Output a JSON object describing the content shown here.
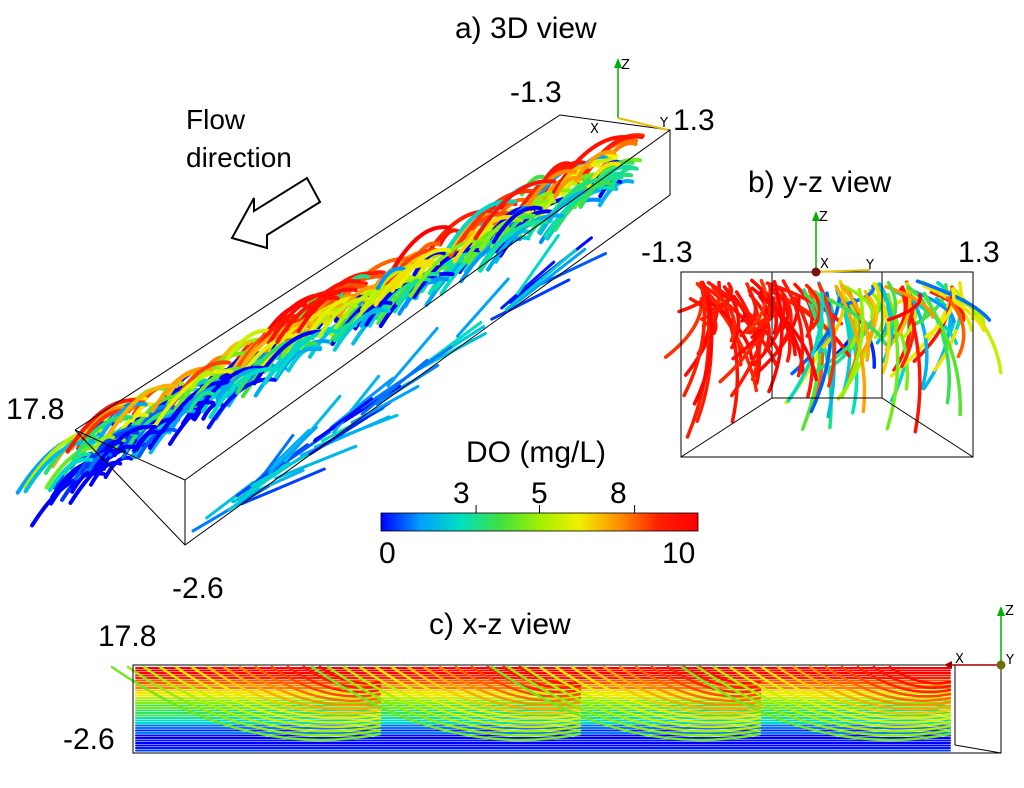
{
  "panels": {
    "a": {
      "title": "a) 3D view",
      "tick_left": "-1.3",
      "tick_right": "1.3",
      "tick_x_top": "17.8",
      "tick_z_bottom": "-2.6"
    },
    "b": {
      "title": "b) y-z view",
      "tick_left": "-1.3",
      "tick_right": "1.3"
    },
    "c": {
      "title": "c) x-z view",
      "tick_top": "17.8",
      "tick_bottom": "-2.6"
    }
  },
  "flow": {
    "line1": "Flow",
    "line2": "direction"
  },
  "colorbar": {
    "title": "DO (mg/L)",
    "min": 0,
    "max": 10,
    "ticks_top": [
      "3",
      "5",
      "8"
    ],
    "tick_values_top": [
      3,
      5,
      8
    ],
    "ticks_bottom": [
      "0",
      "10"
    ],
    "colormap": [
      "#0000ff",
      "#00a0ff",
      "#00e0c0",
      "#40e040",
      "#a0f000",
      "#f0f000",
      "#ff9000",
      "#ff2000",
      "#ff0000"
    ]
  },
  "axis_letters": {
    "x": "X",
    "y": "Y",
    "z": "Z"
  }
}
